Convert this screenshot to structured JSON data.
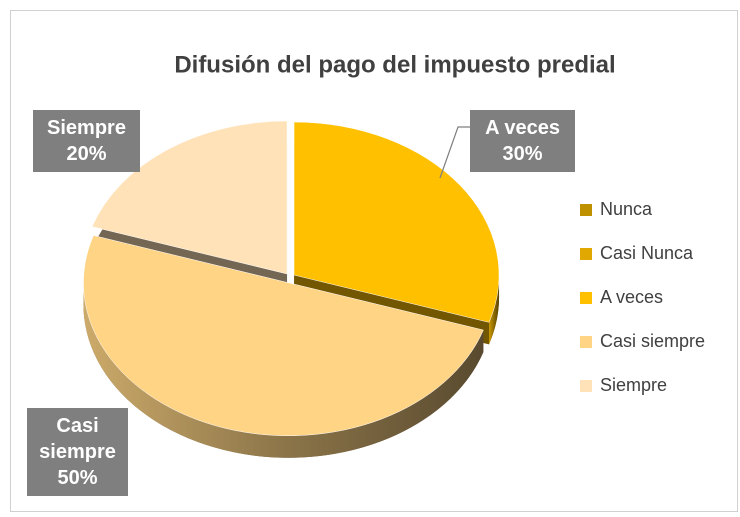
{
  "chart_data": {
    "type": "pie",
    "title": "Difusión del pago del impuesto predial",
    "categories": [
      "Nunca",
      "Casi Nunca",
      "A veces",
      "Casi siempre",
      "Siempre"
    ],
    "values": [
      0,
      0,
      30,
      50,
      20
    ],
    "value_labels": [
      null,
      null,
      "30%",
      "50%",
      "20%"
    ],
    "colors": [
      "#bf9000",
      "#e0a800",
      "#ffc000",
      "#ffd485",
      "#ffe2b8"
    ],
    "legend": "right"
  }
}
